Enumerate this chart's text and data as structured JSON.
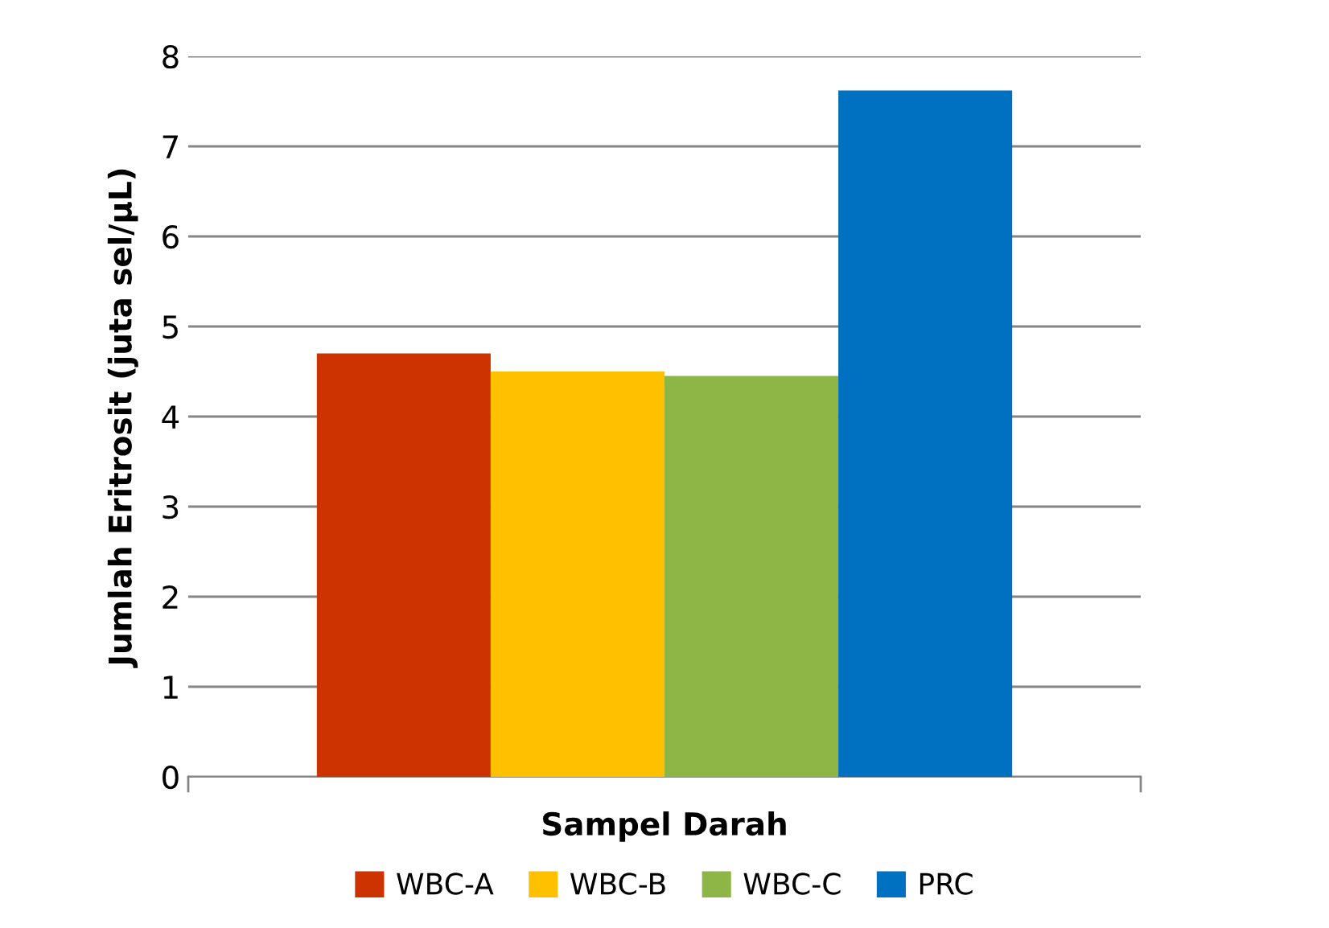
{
  "chart_data": {
    "type": "bar",
    "xlabel": "Sampel Darah",
    "ylabel": "Jumlah Eritrosit (juta sel/μL)",
    "categories": [
      null
    ],
    "series": [
      {
        "name": "WBC-A",
        "color": "#cc3300",
        "values": [
          4.7
        ]
      },
      {
        "name": "WBC-B",
        "color": "#ffc000",
        "values": [
          4.5
        ]
      },
      {
        "name": "WBC-C",
        "color": "#8db646",
        "values": [
          4.45
        ]
      },
      {
        "name": "PRC",
        "color": "#0070c0",
        "values": [
          7.62
        ]
      }
    ],
    "ylim": [
      0,
      8
    ],
    "yticks": [
      0,
      1,
      2,
      3,
      4,
      5,
      6,
      7,
      8
    ],
    "grid": "y",
    "legend": "bottom"
  }
}
